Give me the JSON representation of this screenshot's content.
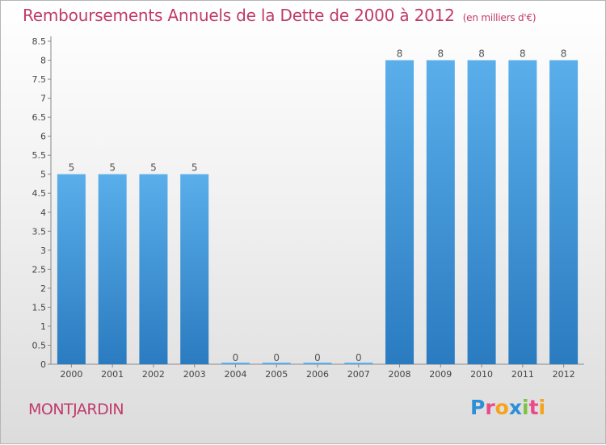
{
  "title": "Remboursements Annuels de la Dette de 2000 à 2012",
  "unit": "(en milliers d'€)",
  "place": "MONTJARDIN",
  "logo": {
    "letters": [
      "P",
      "r",
      "o",
      "x",
      "i",
      "t",
      "i"
    ],
    "colors": [
      "#2f8fd6",
      "#e94b8a",
      "#f6a21a",
      "#2f8fd6",
      "#7cc243",
      "#e94b8a",
      "#f6a21a"
    ]
  },
  "colors": {
    "accent": "#c03a6a",
    "bar_top": "#5aaeea",
    "bar_bottom": "#2a7bc0",
    "text": "#444444"
  },
  "chart_data": {
    "type": "bar",
    "title": "Remboursements Annuels de la Dette de 2000 à 2012",
    "subtitle": "(en milliers d'€)",
    "categories": [
      "2000",
      "2001",
      "2002",
      "2003",
      "2004",
      "2005",
      "2006",
      "2007",
      "2008",
      "2009",
      "2010",
      "2011",
      "2012"
    ],
    "values": [
      5,
      5,
      5,
      5,
      0,
      0,
      0,
      0,
      8,
      8,
      8,
      8,
      8
    ],
    "value_labels": [
      "5",
      "5",
      "5",
      "5",
      "0",
      "0",
      "0",
      "0",
      "8",
      "8",
      "8",
      "8",
      "8"
    ],
    "ylim": [
      0,
      8.5
    ],
    "yticks": [
      "0",
      "0.5",
      "1",
      "1.5",
      "2",
      "2.5",
      "3",
      "3.5",
      "4",
      "4.5",
      "5",
      "5.5",
      "6",
      "6.5",
      "7",
      "7.5",
      "8",
      "8.5"
    ],
    "xlabel": "",
    "ylabel": "",
    "grid": false,
    "legend": "none"
  }
}
